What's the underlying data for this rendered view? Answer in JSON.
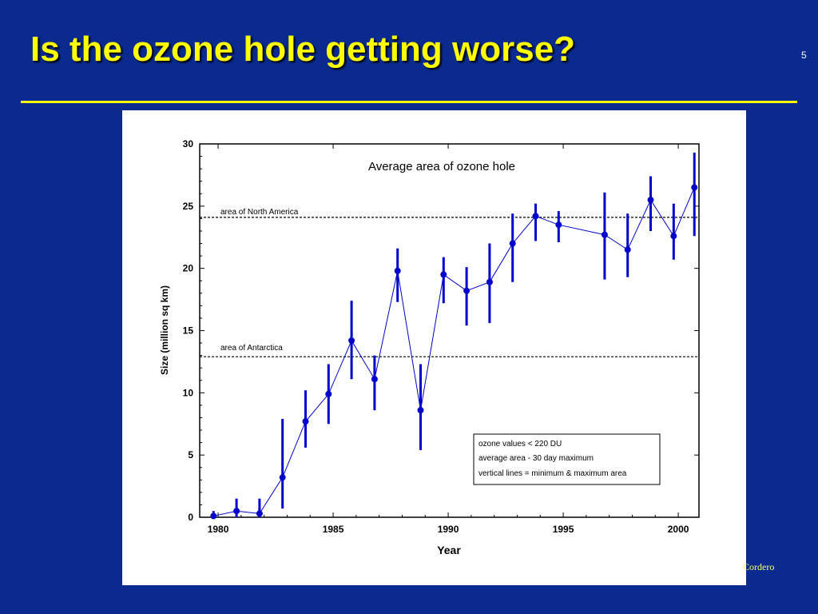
{
  "slide": {
    "title": "Is the ozone hole getting worse?",
    "number": "5",
    "credit": "Cordero"
  },
  "colors": {
    "background": "#0a2a8f",
    "title": "#ffff00",
    "series": "#0000cc"
  },
  "chart_data": {
    "type": "line",
    "title": "Average area of ozone hole",
    "xlabel": "Year",
    "ylabel": "Size (million sq km)",
    "xlim": [
      1979.2,
      2000.9
    ],
    "ylim": [
      0,
      30
    ],
    "xticks": [
      1980,
      1985,
      1990,
      1995,
      2000
    ],
    "yticks": [
      0,
      5,
      10,
      15,
      20,
      25,
      30
    ],
    "grid": false,
    "series": [
      {
        "points": [
          {
            "x": 1979.8,
            "y": 0.1,
            "min": 0,
            "max": 0.5
          },
          {
            "x": 1980.8,
            "y": 0.5,
            "min": 0,
            "max": 1.5
          },
          {
            "x": 1981.8,
            "y": 0.3,
            "min": 0,
            "max": 1.5
          },
          {
            "x": 1982.8,
            "y": 3.2,
            "min": 0.7,
            "max": 7.9
          },
          {
            "x": 1983.8,
            "y": 7.7,
            "min": 5.6,
            "max": 10.2
          },
          {
            "x": 1984.8,
            "y": 9.9,
            "min": 7.5,
            "max": 12.3
          },
          {
            "x": 1985.8,
            "y": 14.2,
            "min": 11.1,
            "max": 17.4
          },
          {
            "x": 1986.8,
            "y": 11.1,
            "min": 8.6,
            "max": 13.0
          },
          {
            "x": 1987.8,
            "y": 19.8,
            "min": 17.3,
            "max": 21.6
          },
          {
            "x": 1988.8,
            "y": 8.6,
            "min": 5.4,
            "max": 12.3
          },
          {
            "x": 1989.8,
            "y": 19.5,
            "min": 17.2,
            "max": 20.9
          },
          {
            "x": 1990.8,
            "y": 18.2,
            "min": 15.4,
            "max": 20.1
          },
          {
            "x": 1991.8,
            "y": 18.9,
            "min": 15.6,
            "max": 22.0
          },
          {
            "x": 1992.8,
            "y": 22.0,
            "min": 18.9,
            "max": 24.4
          },
          {
            "x": 1993.8,
            "y": 24.2,
            "min": 22.2,
            "max": 25.2
          },
          {
            "x": 1994.8,
            "y": 23.5,
            "min": 22.1,
            "max": 24.6
          },
          {
            "x": 1996.8,
            "y": 22.7,
            "min": 19.1,
            "max": 26.1
          },
          {
            "x": 1997.8,
            "y": 21.5,
            "min": 19.3,
            "max": 24.4
          },
          {
            "x": 1998.8,
            "y": 25.5,
            "min": 23.0,
            "max": 27.4
          },
          {
            "x": 1999.8,
            "y": 22.6,
            "min": 20.7,
            "max": 25.2
          },
          {
            "x": 2000.7,
            "y": 26.5,
            "min": 22.6,
            "max": 29.3
          }
        ]
      }
    ],
    "reference_lines": [
      {
        "label": "area of North America",
        "y": 24.1
      },
      {
        "label": "area of Antarctica",
        "y": 12.9
      }
    ],
    "legend_box": {
      "position": "bottom-right",
      "lines": [
        "ozone values < 220 DU",
        "average area - 30 day maximum",
        "vertical lines = minimum & maximum area"
      ]
    }
  }
}
